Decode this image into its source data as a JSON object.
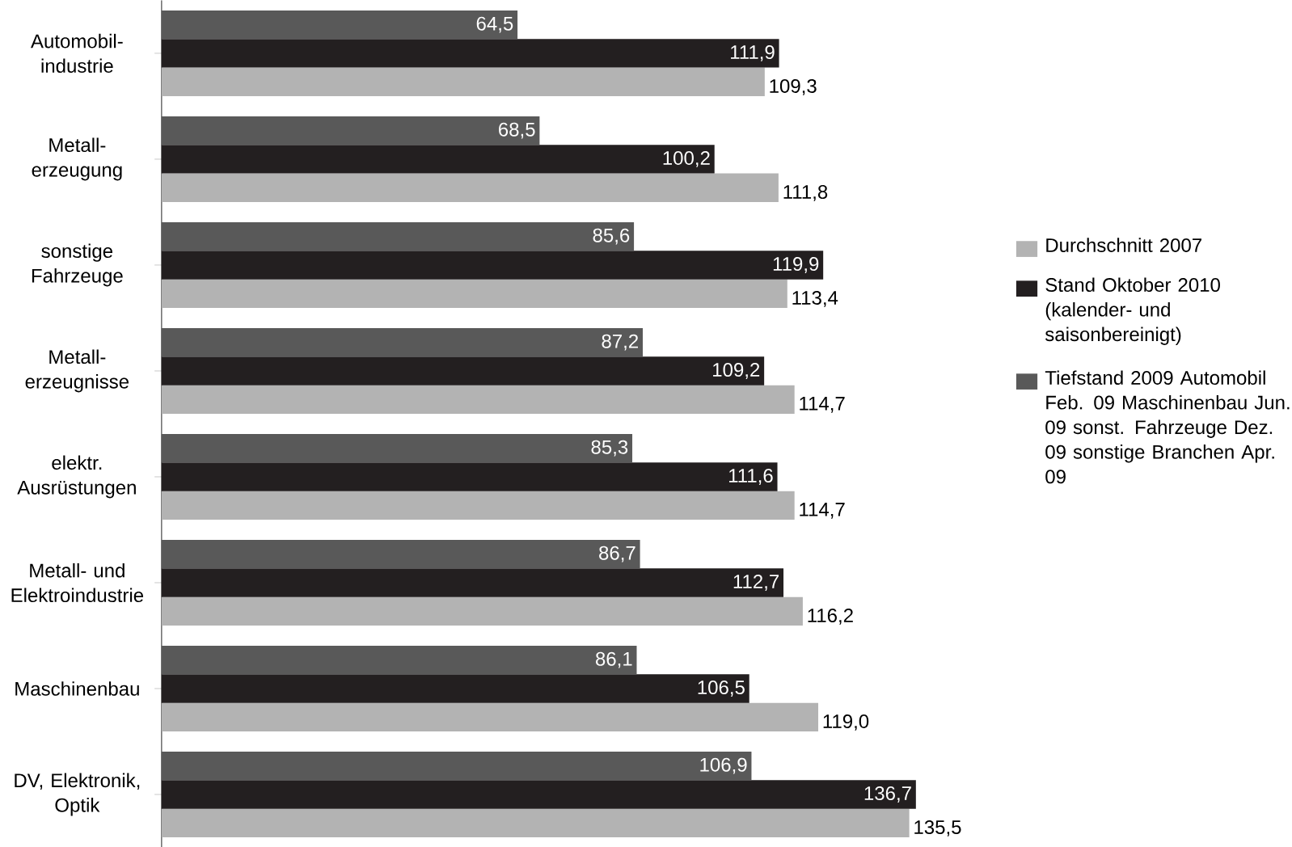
{
  "chart_data": {
    "type": "bar",
    "orientation": "horizontal",
    "categories": [
      "Automobil-industrie",
      "Metall-erzeugung",
      "sonstige Fahrzeuge",
      "Metall-erzeugnisse",
      "elektr. Ausrüstungen",
      "Metall- und Elektroindustrie",
      "Maschinenbau",
      "DV, Elektronik, Optik"
    ],
    "series": [
      {
        "name": "Durchschnitt 2007",
        "color": "#b3b3b3",
        "values": [
          109.3,
          111.8,
          113.4,
          114.7,
          114.7,
          116.2,
          119.0,
          135.5
        ],
        "value_labels": [
          "109,3",
          "111,8",
          "113,4",
          "114,7",
          "114,7",
          "116,2",
          "119,0",
          "135,5"
        ]
      },
      {
        "name": "Stand Oktober 2010 (kalender- und saisonbereinigt)",
        "color": "#231f20",
        "values": [
          111.9,
          100.2,
          119.9,
          109.2,
          111.6,
          112.7,
          106.5,
          136.7
        ],
        "value_labels": [
          "111,9",
          "100,2",
          "119,9",
          "109,2",
          "111,6",
          "112,7",
          "106,5",
          "136,7"
        ]
      },
      {
        "name": "Tiefstand 2009 Automobil Feb. 09 Maschinenbau Jun. 09 sonst. Fahrzeuge Dez. 09 sonstige Branchen Apr. 09",
        "color": "#595959",
        "values": [
          64.5,
          68.5,
          85.6,
          87.2,
          85.3,
          86.7,
          86.1,
          106.9
        ],
        "value_labels": [
          "64,5",
          "68,5",
          "85,6",
          "87,2",
          "85,3",
          "86,7",
          "86,1",
          "106,9"
        ]
      }
    ],
    "legend": "right"
  }
}
